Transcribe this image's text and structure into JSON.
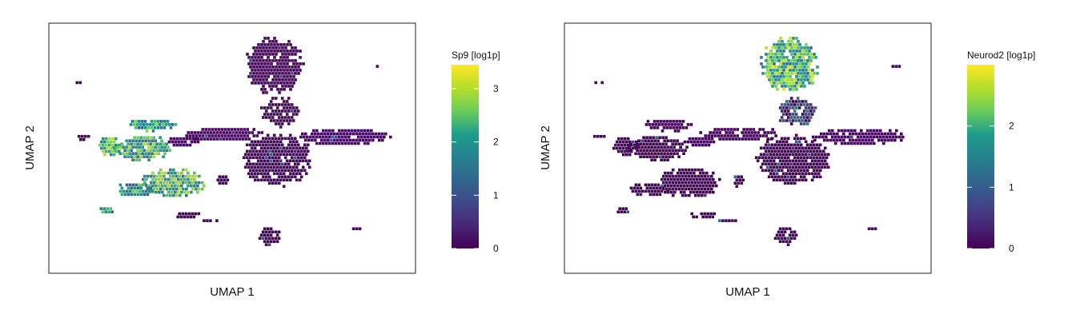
{
  "colors": {
    "background": "#ffffff",
    "frame": "#222222",
    "viridis": [
      "#440154",
      "#482777",
      "#3f4a8a",
      "#31678e",
      "#26838f",
      "#1f9d8a",
      "#6cce5a",
      "#b6de2b",
      "#fee825"
    ]
  },
  "chart_data": [
    {
      "type": "scatter",
      "title": "",
      "xlabel": "UMAP 1",
      "ylabel": "UMAP 2",
      "grid": false,
      "colorbar": {
        "title": "Sp9 [log1p]",
        "range": [
          0,
          3.45
        ],
        "ticks": [
          0,
          1,
          2,
          3
        ],
        "tick_labels": [
          "0",
          "1",
          "2",
          "3"
        ]
      },
      "clusters": [
        {
          "x": 6.2,
          "y": 8.6,
          "rx": 0.9,
          "ry": 1.3,
          "value": 0.05
        },
        {
          "x": 6.4,
          "y": 6.6,
          "rx": 0.6,
          "ry": 0.7,
          "value": 0.1
        },
        {
          "x": 8.2,
          "y": 5.5,
          "rx": 1.5,
          "ry": 0.4,
          "value": 0.1
        },
        {
          "x": 6.3,
          "y": 4.5,
          "rx": 1.1,
          "ry": 1.2,
          "value": 0.1
        },
        {
          "x": 4.8,
          "y": 5.6,
          "rx": 1.2,
          "ry": 0.35,
          "value": 0.1
        },
        {
          "x": 3.6,
          "y": 5.3,
          "rx": 0.5,
          "ry": 0.25,
          "value": 0.1
        },
        {
          "x": 2.4,
          "y": 5.0,
          "rx": 0.9,
          "ry": 0.6,
          "value": 2.2
        },
        {
          "x": 1.5,
          "y": 5.1,
          "rx": 0.4,
          "ry": 0.45,
          "value": 2.4
        },
        {
          "x": 2.7,
          "y": 6.0,
          "rx": 0.8,
          "ry": 0.3,
          "value": 2.0
        },
        {
          "x": 3.3,
          "y": 3.5,
          "rx": 1.0,
          "ry": 0.7,
          "value": 2.3
        },
        {
          "x": 2.2,
          "y": 3.2,
          "rx": 0.6,
          "ry": 0.35,
          "value": 2.0
        },
        {
          "x": 1.4,
          "y": 2.3,
          "rx": 0.22,
          "ry": 0.22,
          "value": 2.0
        },
        {
          "x": 3.7,
          "y": 2.1,
          "rx": 0.4,
          "ry": 0.2,
          "value": 0.05
        },
        {
          "x": 6.1,
          "y": 1.2,
          "rx": 0.35,
          "ry": 0.45,
          "value": 0.05
        },
        {
          "x": 8.6,
          "y": 1.5,
          "rx": 0.2,
          "ry": 0.15,
          "value": 0.05
        },
        {
          "x": 0.7,
          "y": 5.5,
          "rx": 0.2,
          "ry": 0.15,
          "value": 0.05
        },
        {
          "x": 0.7,
          "y": 7.9,
          "rx": 0.35,
          "ry": 0.08,
          "value": 0.05
        },
        {
          "x": 9.3,
          "y": 8.6,
          "rx": 0.4,
          "ry": 0.08,
          "value": 0.05
        },
        {
          "x": 4.4,
          "y": 1.9,
          "rx": 0.3,
          "ry": 0.1,
          "value": 0.05
        },
        {
          "x": 4.7,
          "y": 3.6,
          "rx": 0.2,
          "ry": 0.3,
          "value": 0.05
        }
      ]
    },
    {
      "type": "scatter",
      "title": "",
      "xlabel": "UMAP 1",
      "ylabel": "UMAP 2",
      "grid": false,
      "colorbar": {
        "title": "Neurod2 [log1p]",
        "range": [
          0,
          3.0
        ],
        "ticks": [
          0,
          1,
          2
        ],
        "tick_labels": [
          "0",
          "1",
          "2"
        ]
      },
      "clusters": [
        {
          "x": 6.2,
          "y": 8.6,
          "rx": 0.9,
          "ry": 1.3,
          "value": 2.0
        },
        {
          "x": 6.4,
          "y": 6.6,
          "rx": 0.6,
          "ry": 0.7,
          "value": 0.6
        },
        {
          "x": 8.2,
          "y": 5.5,
          "rx": 1.5,
          "ry": 0.4,
          "value": 0.05
        },
        {
          "x": 6.3,
          "y": 4.5,
          "rx": 1.1,
          "ry": 1.2,
          "value": 0.05
        },
        {
          "x": 4.8,
          "y": 5.6,
          "rx": 1.2,
          "ry": 0.35,
          "value": 0.05
        },
        {
          "x": 3.6,
          "y": 5.3,
          "rx": 0.5,
          "ry": 0.25,
          "value": 0.05
        },
        {
          "x": 2.4,
          "y": 5.0,
          "rx": 0.9,
          "ry": 0.6,
          "value": 0.05
        },
        {
          "x": 1.5,
          "y": 5.1,
          "rx": 0.4,
          "ry": 0.45,
          "value": 0.05
        },
        {
          "x": 2.7,
          "y": 6.0,
          "rx": 0.8,
          "ry": 0.3,
          "value": 0.05
        },
        {
          "x": 3.3,
          "y": 3.5,
          "rx": 1.0,
          "ry": 0.7,
          "value": 0.05
        },
        {
          "x": 2.2,
          "y": 3.2,
          "rx": 0.6,
          "ry": 0.35,
          "value": 0.05
        },
        {
          "x": 1.4,
          "y": 2.3,
          "rx": 0.22,
          "ry": 0.22,
          "value": 0.05
        },
        {
          "x": 3.7,
          "y": 2.1,
          "rx": 0.4,
          "ry": 0.2,
          "value": 0.05
        },
        {
          "x": 6.1,
          "y": 1.2,
          "rx": 0.35,
          "ry": 0.45,
          "value": 0.05
        },
        {
          "x": 8.6,
          "y": 1.5,
          "rx": 0.2,
          "ry": 0.15,
          "value": 0.05
        },
        {
          "x": 0.7,
          "y": 5.5,
          "rx": 0.2,
          "ry": 0.15,
          "value": 0.05
        },
        {
          "x": 0.7,
          "y": 7.9,
          "rx": 0.35,
          "ry": 0.08,
          "value": 0.05
        },
        {
          "x": 9.3,
          "y": 8.6,
          "rx": 0.4,
          "ry": 0.08,
          "value": 0.05
        },
        {
          "x": 4.4,
          "y": 1.9,
          "rx": 0.3,
          "ry": 0.1,
          "value": 0.05
        },
        {
          "x": 4.7,
          "y": 3.6,
          "rx": 0.2,
          "ry": 0.3,
          "value": 0.05
        }
      ]
    }
  ]
}
